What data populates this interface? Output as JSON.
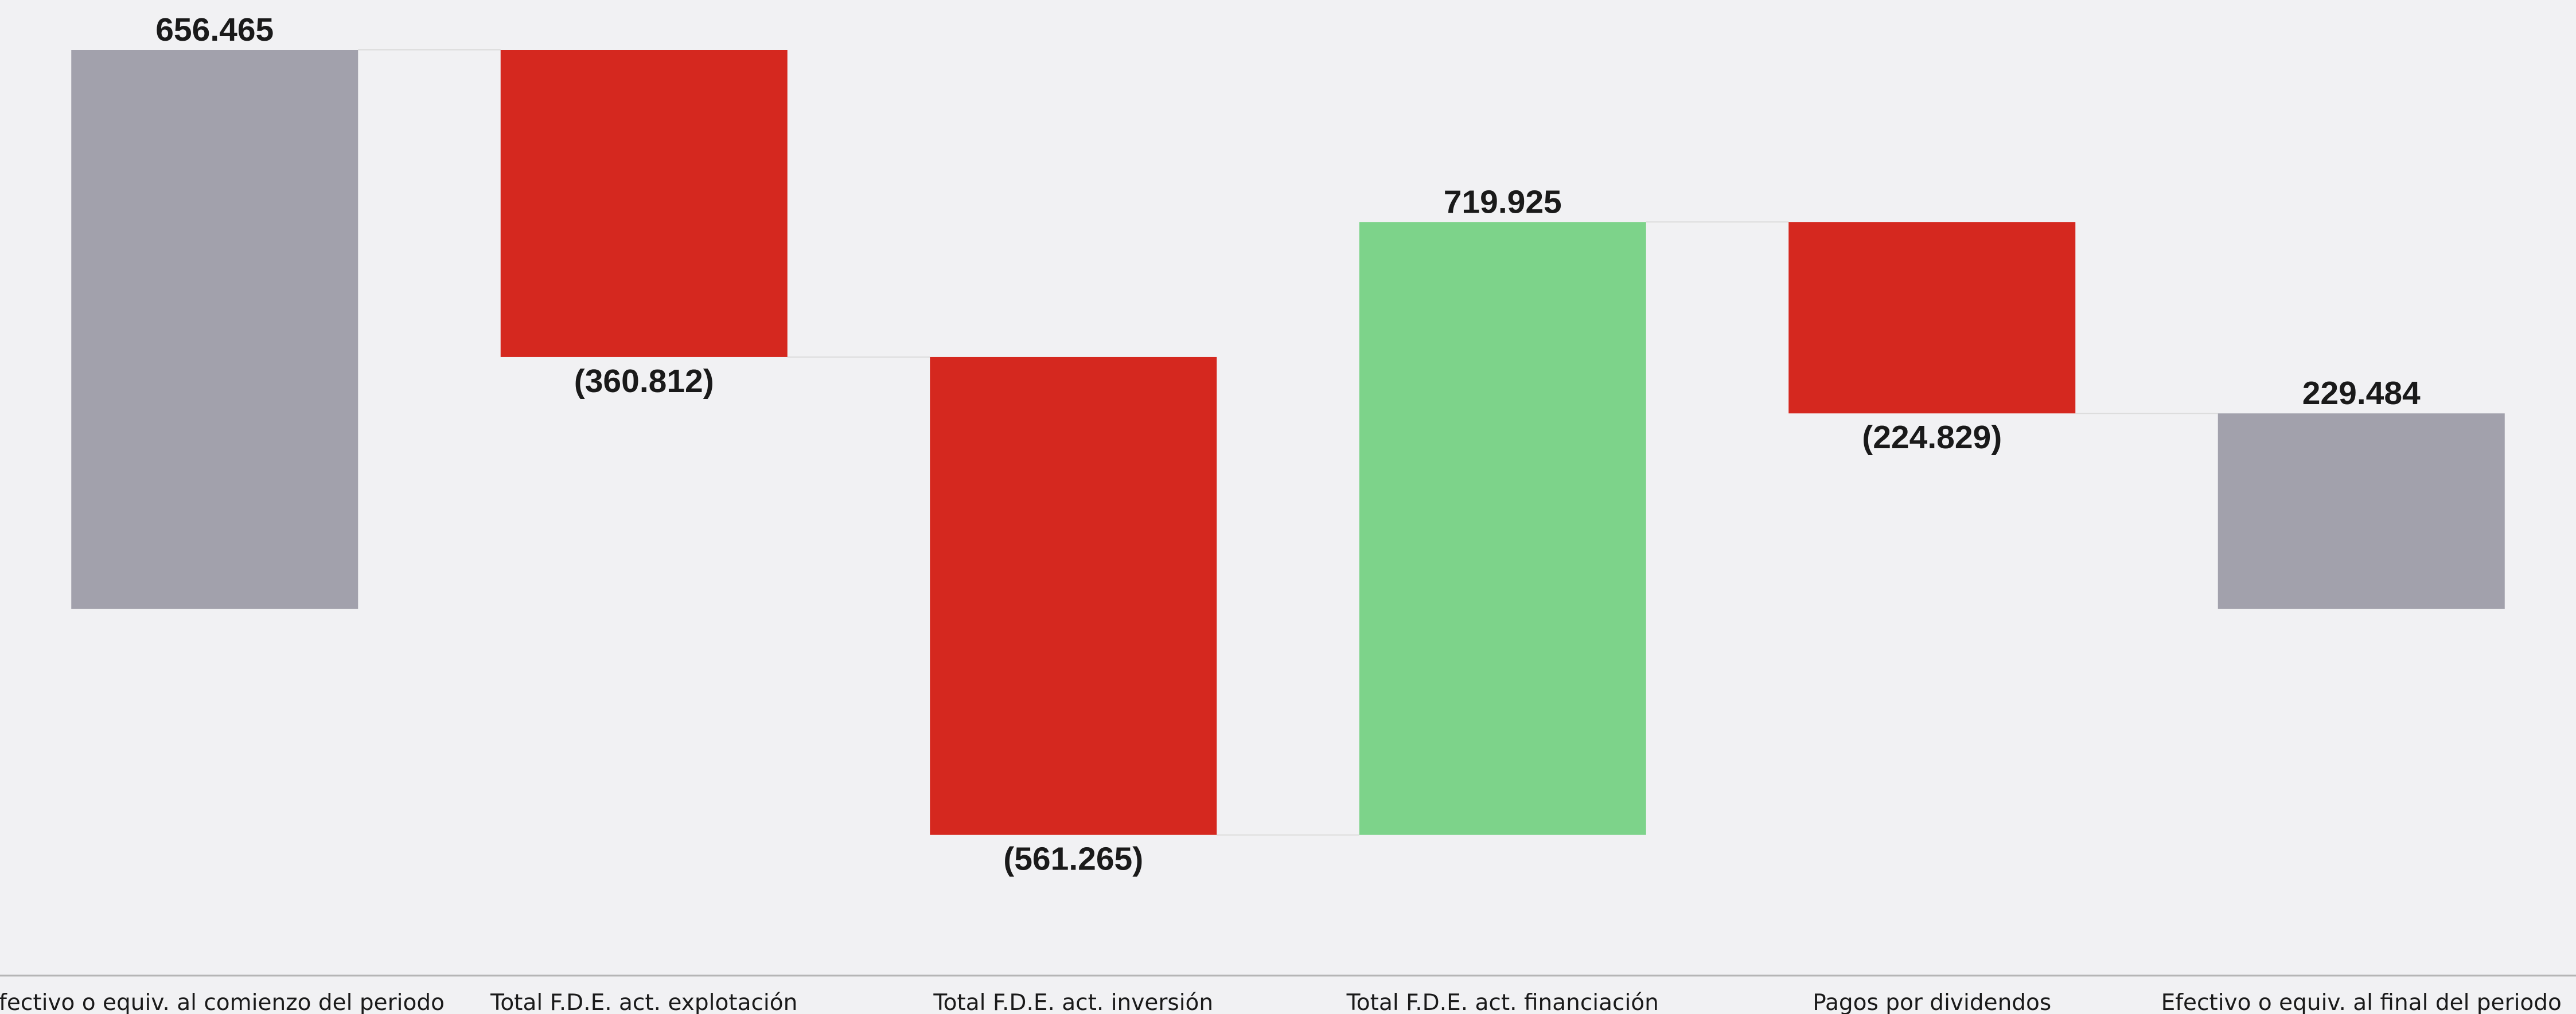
{
  "chart_data": {
    "type": "waterfall",
    "title": "",
    "xlabel": "",
    "ylabel": "",
    "categories": [
      "Efectivo o equiv. al comienzo del periodo",
      "Total F.D.E. act. explotación",
      "Total F.D.E. act. inversión",
      "Total F.D.E. act. financiación",
      "Pagos por dividendos",
      "Efectivo o equiv. al final del periodo"
    ],
    "values": [
      656465,
      -360812,
      -561265,
      719925,
      -224829,
      229484
    ],
    "kinds": [
      "total",
      "delta",
      "delta",
      "delta",
      "delta",
      "total"
    ],
    "value_labels": [
      "656.465",
      "(360.812)",
      "(561.265)",
      "719.925",
      "(224.829)",
      "229.484"
    ],
    "ylim": [
      -290800,
      656465
    ],
    "grid": false,
    "legend": "none",
    "colors": {
      "total": "#a2a1ac",
      "decrease": "#d5281f",
      "increase": "#7dd38a",
      "connector": "#dcdcdc",
      "axis": "#b5b5b5",
      "text": "#1a1a1a",
      "background": "#f1f1f3"
    }
  }
}
